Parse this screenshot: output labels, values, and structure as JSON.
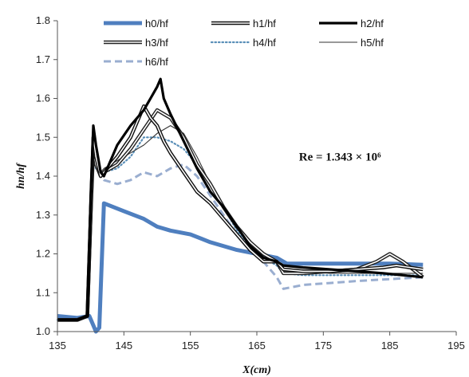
{
  "chart_data": {
    "type": "line",
    "xlabel": "X(cm)",
    "ylabel": "hn/hf",
    "xlim": [
      135,
      195
    ],
    "ylim": [
      1.0,
      1.8
    ],
    "xticks": [
      135,
      145,
      155,
      165,
      175,
      185,
      195
    ],
    "yticks": [
      1.0,
      1.1,
      1.2,
      1.3,
      1.4,
      1.5,
      1.6,
      1.7,
      1.8
    ],
    "grid": false,
    "legend_position": "top",
    "annotation": {
      "text": "Re = 1.343 × 10⁶",
      "x": 177.5,
      "y": 1.44
    },
    "series": [
      {
        "name": "h0/hf",
        "color": "#4f7fbf",
        "style": "thick",
        "x": [
          135,
          138,
          139.8,
          140.3,
          140.8,
          141.3,
          142,
          145,
          148,
          150,
          152,
          155,
          158,
          162,
          165,
          168,
          169.5,
          175,
          180,
          185,
          190
        ],
        "y": [
          1.04,
          1.035,
          1.04,
          1.02,
          1.0,
          1.01,
          1.33,
          1.31,
          1.29,
          1.27,
          1.26,
          1.25,
          1.23,
          1.21,
          1.2,
          1.19,
          1.175,
          1.175,
          1.175,
          1.175,
          1.172
        ]
      },
      {
        "name": "h1/hf",
        "color": "#111111",
        "style": "double",
        "x": [
          135,
          138,
          139.5,
          140,
          140.4,
          140.8,
          141.5,
          142,
          144,
          146,
          148,
          149,
          150,
          151,
          152,
          154,
          156,
          158,
          160,
          162,
          164,
          166,
          168,
          169,
          172,
          176,
          180,
          184,
          186,
          188,
          190
        ],
        "y": [
          1.03,
          1.03,
          1.04,
          1.3,
          1.5,
          1.45,
          1.4,
          1.41,
          1.45,
          1.5,
          1.58,
          1.55,
          1.53,
          1.49,
          1.46,
          1.41,
          1.36,
          1.33,
          1.29,
          1.25,
          1.21,
          1.18,
          1.18,
          1.16,
          1.155,
          1.155,
          1.16,
          1.165,
          1.17,
          1.165,
          1.16
        ]
      },
      {
        "name": "h2/hf",
        "color": "#000000",
        "style": "heavy",
        "x": [
          135,
          138,
          139.5,
          140,
          140.4,
          140.8,
          141.5,
          142,
          144,
          146,
          148,
          149,
          150,
          150.5,
          151,
          152,
          154,
          156,
          158,
          160,
          162,
          164,
          166,
          168,
          169,
          172,
          176,
          180,
          184,
          187,
          190
        ],
        "y": [
          1.03,
          1.03,
          1.04,
          1.35,
          1.53,
          1.48,
          1.41,
          1.4,
          1.48,
          1.53,
          1.57,
          1.6,
          1.63,
          1.65,
          1.6,
          1.56,
          1.49,
          1.42,
          1.36,
          1.32,
          1.27,
          1.22,
          1.19,
          1.18,
          1.17,
          1.165,
          1.16,
          1.155,
          1.15,
          1.145,
          1.14
        ]
      },
      {
        "name": "h3/hf",
        "color": "#222222",
        "style": "double",
        "x": [
          135,
          138,
          139.5,
          140,
          140.4,
          140.8,
          141.5,
          142,
          144,
          146,
          148,
          150,
          151,
          152,
          154,
          156,
          158,
          160,
          162,
          164,
          166,
          168,
          169,
          172,
          176,
          180,
          183,
          185,
          187,
          190
        ],
        "y": [
          1.03,
          1.03,
          1.04,
          1.3,
          1.47,
          1.43,
          1.4,
          1.41,
          1.43,
          1.47,
          1.52,
          1.57,
          1.56,
          1.55,
          1.5,
          1.43,
          1.38,
          1.32,
          1.27,
          1.23,
          1.2,
          1.18,
          1.15,
          1.15,
          1.155,
          1.16,
          1.18,
          1.2,
          1.18,
          1.14
        ]
      },
      {
        "name": "h4/hf",
        "color": "#5a8fb8",
        "style": "dotted",
        "x": [
          135,
          138,
          139.5,
          140,
          140.4,
          140.8,
          141.5,
          142,
          144,
          146,
          148,
          150,
          152,
          154,
          156,
          158,
          160,
          162,
          164,
          166,
          168,
          169,
          172,
          176,
          180,
          185,
          190
        ],
        "y": [
          1.03,
          1.03,
          1.04,
          1.3,
          1.44,
          1.42,
          1.41,
          1.41,
          1.42,
          1.45,
          1.5,
          1.5,
          1.49,
          1.47,
          1.43,
          1.38,
          1.32,
          1.26,
          1.22,
          1.19,
          1.17,
          1.15,
          1.145,
          1.145,
          1.145,
          1.145,
          1.145
        ]
      },
      {
        "name": "h5/hf",
        "color": "#333333",
        "style": "thin",
        "x": [
          135,
          138,
          139.5,
          140,
          140.4,
          140.8,
          141.5,
          142,
          144,
          146,
          148,
          150,
          152,
          154,
          156,
          158,
          160,
          162,
          164,
          166,
          168,
          169,
          172,
          176,
          180,
          185,
          190
        ],
        "y": [
          1.03,
          1.03,
          1.04,
          1.3,
          1.47,
          1.43,
          1.41,
          1.42,
          1.44,
          1.46,
          1.48,
          1.51,
          1.53,
          1.51,
          1.45,
          1.38,
          1.32,
          1.27,
          1.23,
          1.2,
          1.18,
          1.16,
          1.155,
          1.15,
          1.15,
          1.15,
          1.15
        ]
      },
      {
        "name": "h6/hf",
        "color": "#9aaed0",
        "style": "dashed",
        "x": [
          135,
          138,
          139.5,
          140,
          140.4,
          140.8,
          141.5,
          142,
          144,
          146,
          148,
          150,
          152,
          154,
          156,
          158,
          160,
          162,
          164,
          166,
          168,
          169,
          172,
          176,
          180,
          185,
          190
        ],
        "y": [
          1.03,
          1.03,
          1.04,
          1.3,
          1.46,
          1.43,
          1.4,
          1.39,
          1.38,
          1.39,
          1.41,
          1.4,
          1.42,
          1.43,
          1.4,
          1.35,
          1.3,
          1.25,
          1.21,
          1.18,
          1.14,
          1.11,
          1.12,
          1.125,
          1.13,
          1.135,
          1.14
        ]
      }
    ]
  }
}
